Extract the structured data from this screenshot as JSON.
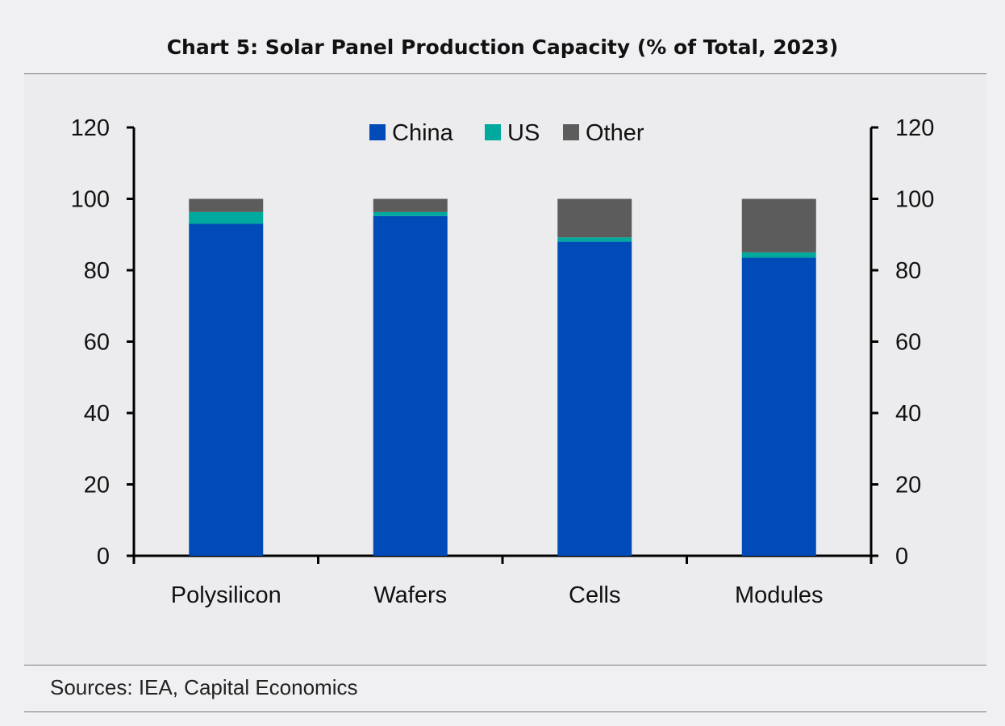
{
  "title": "Chart 5: Solar Panel Production Capacity (% of Total, 2023)",
  "source": "Sources: IEA, Capital Economics",
  "chart_data": {
    "type": "bar",
    "stacked": true,
    "categories": [
      "Polysilicon",
      "Wafers",
      "Cells",
      "Modules"
    ],
    "series": [
      {
        "name": "China",
        "color": "#004bb8",
        "values": [
          93,
          95.2,
          88,
          83.5
        ]
      },
      {
        "name": "US",
        "color": "#00a99d",
        "values": [
          3.3,
          1.1,
          1.2,
          1.5
        ]
      },
      {
        "name": "Other",
        "color": "#5c5c5c",
        "values": [
          3.7,
          3.7,
          10.8,
          15
        ]
      }
    ],
    "ylim": [
      0,
      120
    ],
    "yticks": [
      0,
      20,
      40,
      60,
      80,
      100,
      120
    ],
    "left_axis": true,
    "right_axis": true,
    "grid": false,
    "legend": "top-center"
  }
}
